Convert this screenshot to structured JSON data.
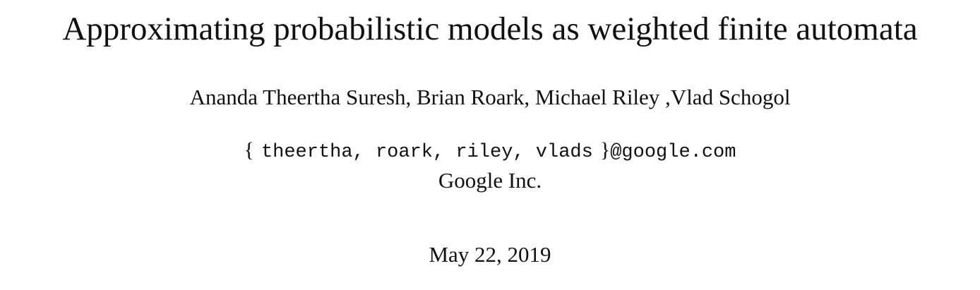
{
  "title": "Approximating probabilistic models as weighted finite automata",
  "authors": "Ananda Theertha Suresh, Brian Roark, Michael Riley ,Vlad Schogol",
  "email": {
    "open": "{",
    "names": "theertha, roark, riley, vlads",
    "close": "}",
    "domain": "@google.com"
  },
  "affiliation": "Google Inc.",
  "date": "May 22, 2019"
}
